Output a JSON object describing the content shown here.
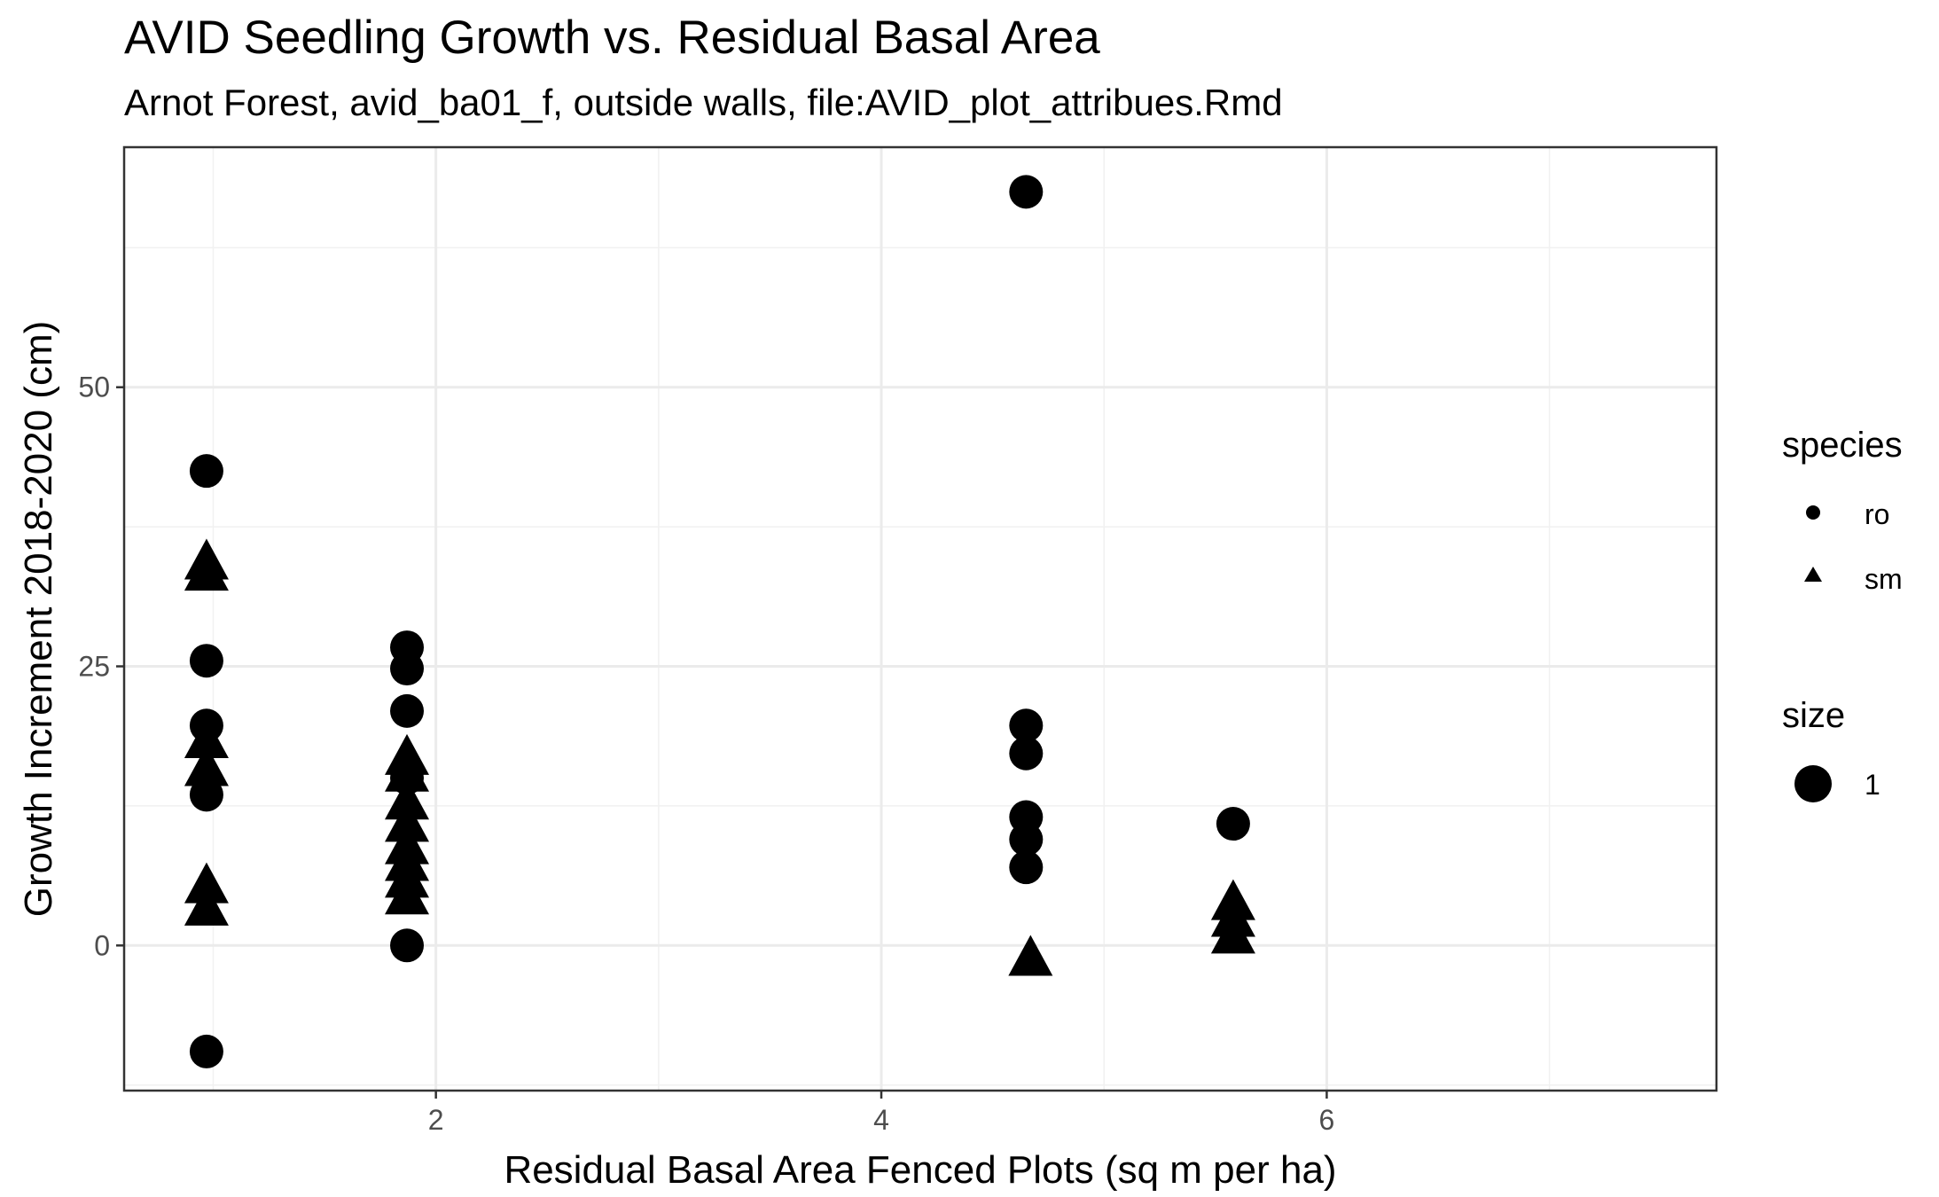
{
  "chart_data": {
    "type": "scatter",
    "title": "AVID Seedling Growth vs. Residual Basal Area",
    "subtitle": "Arnot Forest, avid_ba01_f, outside walls, file:AVID_plot_attribues.Rmd",
    "xlabel": "Residual Basal Area Fenced Plots (sq m per ha)",
    "ylabel": "Growth Increment 2018-2020 (cm)",
    "xlim": [
      0.6,
      7.75
    ],
    "ylim": [
      -13,
      71.5
    ],
    "x_ticks": [
      2,
      4,
      6
    ],
    "x_tick_labels": [
      "2",
      "4",
      "6"
    ],
    "x_minor_ticks": [
      1,
      3,
      5,
      7
    ],
    "y_ticks": [
      0,
      25,
      50
    ],
    "y_tick_labels": [
      "0",
      "25",
      "50"
    ],
    "y_minor_ticks": [
      -12.5,
      12.5,
      37.5,
      62.5
    ],
    "grid": true,
    "legend_position": "right",
    "legend": [
      {
        "title": "species",
        "entries": [
          {
            "label": "ro",
            "shape": "circle"
          },
          {
            "label": "sm",
            "shape": "triangle"
          }
        ]
      },
      {
        "title": "size",
        "entries": [
          {
            "label": "1",
            "shape": "circle"
          }
        ]
      }
    ],
    "series": [
      {
        "name": "ro",
        "shape": "circle",
        "points": [
          [
            0.97,
            42.5
          ],
          [
            0.97,
            25.5
          ],
          [
            0.97,
            19.7
          ],
          [
            0.97,
            13.5
          ],
          [
            0.97,
            -9.5
          ],
          [
            1.87,
            26.7
          ],
          [
            1.87,
            24.8
          ],
          [
            1.87,
            21.0
          ],
          [
            1.87,
            15.0
          ],
          [
            1.87,
            0.0
          ],
          [
            4.65,
            67.5
          ],
          [
            4.65,
            19.7
          ],
          [
            4.65,
            17.2
          ],
          [
            4.65,
            11.5
          ],
          [
            4.65,
            9.5
          ],
          [
            4.65,
            7.0
          ],
          [
            5.58,
            10.9
          ]
        ]
      },
      {
        "name": "sm",
        "shape": "triangle",
        "points": [
          [
            0.97,
            34.0
          ],
          [
            0.97,
            33.0
          ],
          [
            0.97,
            18.0
          ],
          [
            0.97,
            15.5
          ],
          [
            0.97,
            5.0
          ],
          [
            0.97,
            3.0
          ],
          [
            1.87,
            16.5
          ],
          [
            1.87,
            15.0
          ],
          [
            1.87,
            12.5
          ],
          [
            1.87,
            10.5
          ],
          [
            1.87,
            8.5
          ],
          [
            1.87,
            7.0
          ],
          [
            1.87,
            5.5
          ],
          [
            1.87,
            4.0
          ],
          [
            4.67,
            -1.5
          ],
          [
            5.58,
            3.5
          ],
          [
            5.58,
            2.0
          ],
          [
            5.58,
            0.5
          ]
        ]
      }
    ]
  }
}
